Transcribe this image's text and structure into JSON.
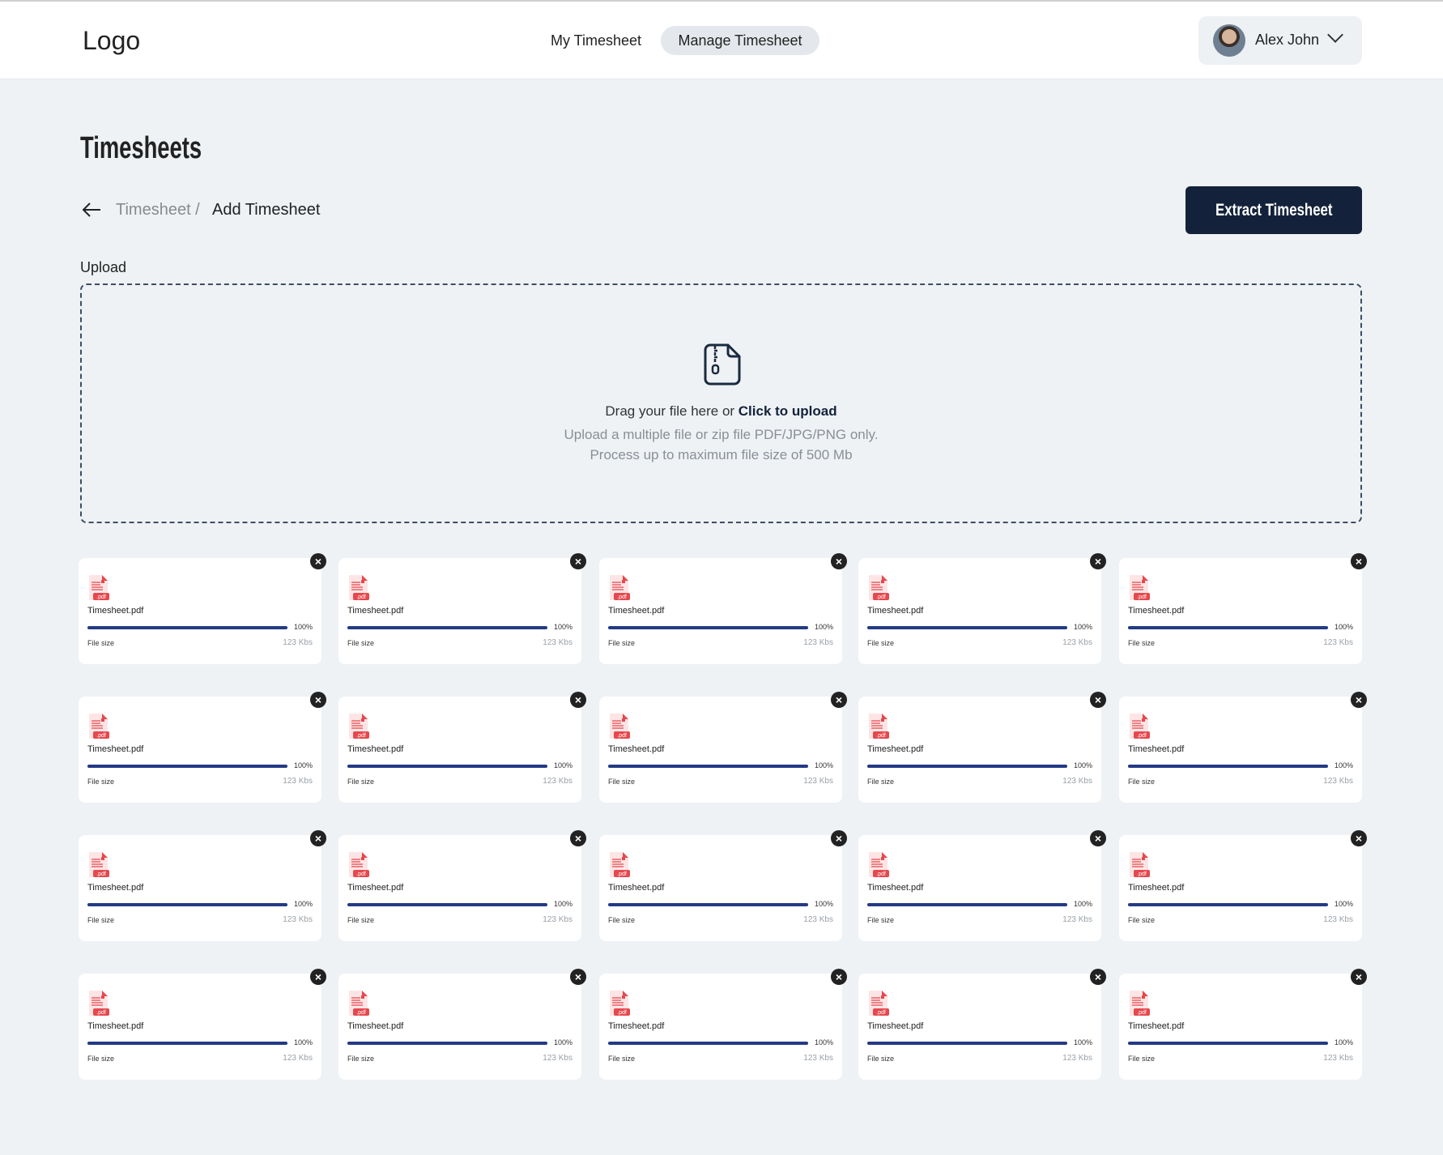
{
  "header": {
    "logo": "Logo",
    "nav": [
      {
        "label": "My Timesheet",
        "active": false
      },
      {
        "label": "Manage Timesheet",
        "active": true
      }
    ],
    "user": {
      "name": "Alex John"
    }
  },
  "page": {
    "title": "Timesheets",
    "breadcrumb": [
      "Timesheet /",
      "Add Timesheet"
    ],
    "extract_label": "Extract Timesheet"
  },
  "upload": {
    "label": "Upload",
    "drag_text": "Drag your file here or ",
    "click_text": "Click to upload",
    "hint1": "Upload a multiple file or zip file  PDF/JPG/PNG only.",
    "hint2": "Process up to maximum file size of 500 Mb"
  },
  "colors": {
    "primary": "#13223a",
    "progress": "#243a85",
    "pdf": "#e5484d"
  },
  "file_size_label": "File size",
  "files": [
    {
      "name": "Timesheet.pdf",
      "progress": 100,
      "progress_label": "100%",
      "size": "123 Kbs"
    },
    {
      "name": "Timesheet.pdf",
      "progress": 100,
      "progress_label": "100%",
      "size": "123 Kbs"
    },
    {
      "name": "Timesheet.pdf",
      "progress": 100,
      "progress_label": "100%",
      "size": "123 Kbs"
    },
    {
      "name": "Timesheet.pdf",
      "progress": 100,
      "progress_label": "100%",
      "size": "123 Kbs"
    },
    {
      "name": "Timesheet.pdf",
      "progress": 100,
      "progress_label": "100%",
      "size": "123 Kbs"
    },
    {
      "name": "Timesheet.pdf",
      "progress": 100,
      "progress_label": "100%",
      "size": "123 Kbs"
    },
    {
      "name": "Timesheet.pdf",
      "progress": 100,
      "progress_label": "100%",
      "size": "123 Kbs"
    },
    {
      "name": "Timesheet.pdf",
      "progress": 100,
      "progress_label": "100%",
      "size": "123 Kbs"
    },
    {
      "name": "Timesheet.pdf",
      "progress": 100,
      "progress_label": "100%",
      "size": "123 Kbs"
    },
    {
      "name": "Timesheet.pdf",
      "progress": 100,
      "progress_label": "100%",
      "size": "123 Kbs"
    },
    {
      "name": "Timesheet.pdf",
      "progress": 100,
      "progress_label": "100%",
      "size": "123 Kbs"
    },
    {
      "name": "Timesheet.pdf",
      "progress": 100,
      "progress_label": "100%",
      "size": "123 Kbs"
    },
    {
      "name": "Timesheet.pdf",
      "progress": 100,
      "progress_label": "100%",
      "size": "123 Kbs"
    },
    {
      "name": "Timesheet.pdf",
      "progress": 100,
      "progress_label": "100%",
      "size": "123 Kbs"
    },
    {
      "name": "Timesheet.pdf",
      "progress": 100,
      "progress_label": "100%",
      "size": "123 Kbs"
    },
    {
      "name": "Timesheet.pdf",
      "progress": 100,
      "progress_label": "100%",
      "size": "123 Kbs"
    },
    {
      "name": "Timesheet.pdf",
      "progress": 100,
      "progress_label": "100%",
      "size": "123 Kbs"
    },
    {
      "name": "Timesheet.pdf",
      "progress": 100,
      "progress_label": "100%",
      "size": "123 Kbs"
    },
    {
      "name": "Timesheet.pdf",
      "progress": 100,
      "progress_label": "100%",
      "size": "123 Kbs"
    },
    {
      "name": "Timesheet.pdf",
      "progress": 100,
      "progress_label": "100%",
      "size": "123 Kbs"
    }
  ]
}
